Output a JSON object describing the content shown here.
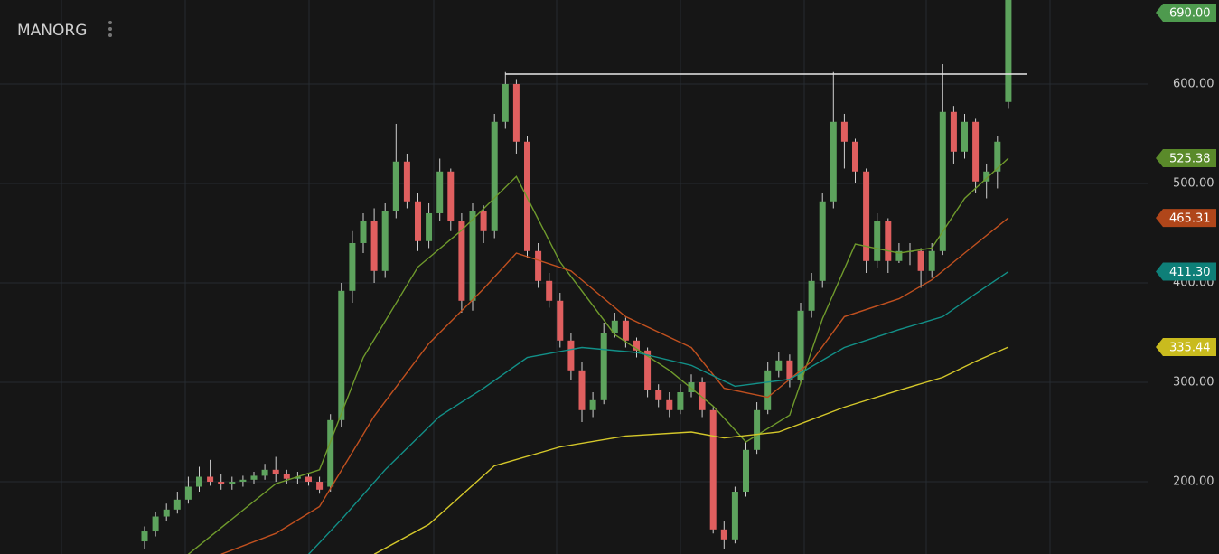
{
  "chart_data": {
    "type": "candlestick",
    "title": "MANORG",
    "ylim": [
      127.3,
      684.5
    ],
    "yticks": [
      {
        "value": 200,
        "label": "200.00"
      },
      {
        "value": 300,
        "label": "300.00"
      },
      {
        "value": 400,
        "label": "400.00"
      },
      {
        "value": 500,
        "label": "500.00"
      },
      {
        "value": 600,
        "label": "600.00"
      }
    ],
    "grid": true,
    "up_color": "#5da35d",
    "down_color": "#e05f5f",
    "level": 610,
    "last_label": "690.00",
    "candles": {
      "open": [
        140,
        150,
        165,
        172,
        182,
        195,
        205,
        200,
        198,
        200,
        202,
        206,
        212,
        208,
        203,
        205,
        200,
        195,
        262,
        392,
        440,
        462,
        412,
        472,
        522,
        482,
        442,
        470,
        512,
        462,
        382,
        472,
        452,
        562,
        600,
        542,
        432,
        402,
        382,
        342,
        312,
        272,
        282,
        350,
        362,
        342,
        332,
        292,
        282,
        272,
        290,
        300,
        272,
        152,
        142,
        190,
        232,
        272,
        312,
        322,
        302,
        372,
        402,
        482,
        562,
        542,
        512,
        422,
        462,
        422,
        432,
        432,
        412,
        432,
        572,
        532,
        562,
        502,
        512,
        582
      ],
      "high": [
        155,
        170,
        178,
        190,
        205,
        215,
        222,
        208,
        205,
        206,
        210,
        218,
        225,
        212,
        210,
        208,
        205,
        268,
        400,
        452,
        470,
        475,
        480,
        560,
        530,
        490,
        480,
        525,
        515,
        470,
        480,
        478,
        570,
        612,
        605,
        548,
        440,
        410,
        390,
        350,
        320,
        290,
        360,
        370,
        365,
        345,
        335,
        298,
        290,
        298,
        308,
        305,
        275,
        160,
        195,
        240,
        280,
        320,
        330,
        328,
        380,
        410,
        490,
        612,
        570,
        545,
        515,
        470,
        465,
        440,
        440,
        435,
        440,
        620,
        578,
        570,
        565,
        520,
        548,
        690
      ],
      "low": [
        132,
        145,
        160,
        168,
        178,
        190,
        196,
        192,
        192,
        195,
        198,
        202,
        200,
        198,
        198,
        196,
        188,
        190,
        255,
        380,
        430,
        400,
        405,
        465,
        475,
        432,
        435,
        462,
        452,
        370,
        372,
        440,
        445,
        555,
        530,
        425,
        395,
        375,
        335,
        302,
        260,
        265,
        278,
        345,
        335,
        325,
        285,
        275,
        265,
        268,
        285,
        265,
        148,
        132,
        138,
        185,
        228,
        268,
        305,
        295,
        298,
        365,
        395,
        475,
        515,
        500,
        410,
        415,
        410,
        420,
        418,
        395,
        405,
        428,
        520,
        525,
        490,
        485,
        495,
        575
      ],
      "close": [
        150,
        165,
        172,
        182,
        195,
        205,
        200,
        198,
        200,
        202,
        206,
        212,
        208,
        203,
        205,
        200,
        192,
        262,
        392,
        440,
        462,
        412,
        472,
        522,
        482,
        442,
        470,
        512,
        462,
        382,
        472,
        452,
        562,
        600,
        542,
        432,
        402,
        382,
        342,
        312,
        272,
        282,
        350,
        362,
        342,
        332,
        292,
        282,
        272,
        290,
        300,
        272,
        152,
        142,
        190,
        232,
        272,
        312,
        322,
        302,
        372,
        402,
        482,
        562,
        542,
        512,
        422,
        462,
        422,
        432,
        432,
        412,
        432,
        572,
        532,
        562,
        502,
        512,
        542,
        690
      ]
    },
    "ma": [
      {
        "color": "#6f9a2c",
        "badge_color": "#5a8a2a",
        "badge": "525.38",
        "x": [
          4,
          12,
          16,
          20,
          25,
          29,
          34,
          38,
          43,
          48,
          52,
          55,
          59,
          62,
          65,
          69,
          72,
          75,
          79
        ],
        "values": [
          127,
          198,
          212,
          325,
          416,
          453,
          507,
          421,
          348,
          312,
          276,
          240,
          267,
          364,
          439,
          430,
          435,
          485,
          525.38
        ]
      },
      {
        "color": "#c0501f",
        "badge_color": "#b0461a",
        "badge": "465.31",
        "x": [
          7,
          12,
          16,
          21,
          26,
          31,
          34,
          39,
          44,
          50,
          53,
          57,
          61,
          64,
          69,
          72,
          75,
          79
        ],
        "values": [
          127,
          148,
          175,
          266,
          339,
          394,
          430,
          412,
          366,
          335,
          294,
          285,
          321,
          366,
          384,
          403,
          430,
          465.31
        ]
      },
      {
        "color": "#129088",
        "badge_color": "#0e7f78",
        "badge": "411.30",
        "x": [
          15,
          18,
          22,
          27,
          31,
          35,
          40,
          45,
          50,
          54,
          59,
          64,
          69,
          73,
          76,
          79
        ],
        "values": [
          127,
          162,
          212,
          266,
          294,
          325,
          335,
          330,
          317,
          296,
          303,
          335,
          353,
          366,
          389,
          411.3
        ]
      },
      {
        "color": "#d4c72a",
        "badge_color": "#c9bb1e",
        "badge": "335.44",
        "x": [
          21,
          26,
          32,
          38,
          44,
          50,
          53,
          58,
          64,
          69,
          73,
          76,
          79
        ],
        "values": [
          127,
          157,
          216,
          235,
          246,
          250,
          244,
          250,
          275,
          292,
          305,
          321,
          335.44
        ]
      }
    ]
  }
}
